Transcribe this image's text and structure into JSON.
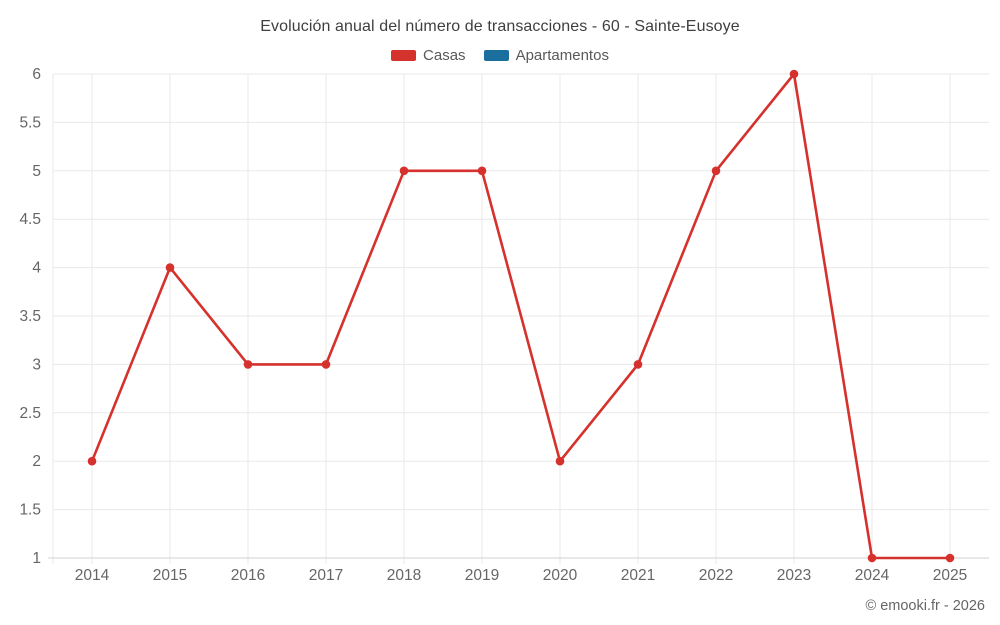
{
  "chart_data": {
    "type": "line",
    "title": "Evolución anual del número de transacciones - 60 - Sainte-Eusoye",
    "xlabel": "",
    "ylabel": "",
    "categories": [
      "2014",
      "2015",
      "2016",
      "2017",
      "2018",
      "2019",
      "2020",
      "2021",
      "2022",
      "2023",
      "2024",
      "2025"
    ],
    "series": [
      {
        "name": "Casas",
        "color": "#d5312d",
        "values": [
          2,
          4,
          3,
          3,
          5,
          5,
          2,
          3,
          5,
          6,
          1,
          1
        ]
      },
      {
        "name": "Apartamentos",
        "color": "#1a6f9f",
        "values": []
      }
    ],
    "ylim": [
      1,
      6
    ],
    "ytick_step": 0.5,
    "grid": true,
    "legend_position": "top",
    "marker_radius": 4.3,
    "line_width": 2.6
  },
  "footer": {
    "copyright": "© emooki.fr - 2026"
  },
  "colors": {
    "gridline": "#e9e9e9",
    "axis_line": "#d2d2d2",
    "tick_label": "#666666",
    "title": "#3f3f3f",
    "legend_label": "#595959",
    "background": "#ffffff"
  }
}
